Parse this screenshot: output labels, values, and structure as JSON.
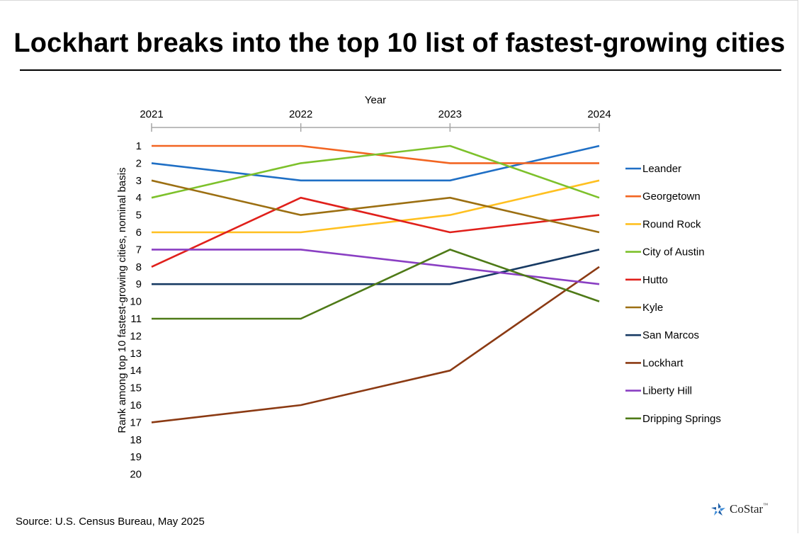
{
  "title": "Lockhart breaks into the top 10 list of fastest-growing cities",
  "source": "Source: U.S. Census Bureau, May 2025",
  "logo": {
    "text": "CoStar",
    "tm": "™"
  },
  "chart_data": {
    "type": "line",
    "title": "Lockhart breaks into the top 10 list of fastest-growing cities",
    "xlabel": "Year",
    "ylabel": "Rank among top 10 fastest-growing cities, nominal basis",
    "x": [
      "2021",
      "2022",
      "2023",
      "2024"
    ],
    "x_axis_position": "top",
    "y_inverted": true,
    "ylim": [
      1,
      20
    ],
    "y_ticks": [
      "1",
      "2",
      "3",
      "4",
      "5",
      "6",
      "7",
      "8",
      "9",
      "10",
      "11",
      "12",
      "13",
      "14",
      "15",
      "16",
      "17",
      "18",
      "19",
      "20"
    ],
    "grid": false,
    "legend_position": "right",
    "series": [
      {
        "name": "Leander",
        "color": "#1f6fc5",
        "values": [
          2,
          3,
          3,
          1
        ]
      },
      {
        "name": "Georgetown",
        "color": "#f26522",
        "values": [
          1,
          1,
          2,
          2
        ]
      },
      {
        "name": "Round Rock",
        "color": "#ffc020",
        "values": [
          6,
          6,
          5,
          3
        ]
      },
      {
        "name": "City of Austin",
        "color": "#7dc12b",
        "values": [
          4,
          2,
          1,
          4
        ]
      },
      {
        "name": "Hutto",
        "color": "#e0201b",
        "values": [
          8,
          4,
          6,
          5
        ]
      },
      {
        "name": "Kyle",
        "color": "#9c6f12",
        "values": [
          3,
          5,
          4,
          6
        ]
      },
      {
        "name": "San Marcos",
        "color": "#173a63",
        "values": [
          9,
          9,
          9,
          7
        ]
      },
      {
        "name": "Lockhart",
        "color": "#8b3a13",
        "values": [
          17,
          16,
          14,
          8
        ]
      },
      {
        "name": "Liberty Hill",
        "color": "#8a3fc3",
        "values": [
          7,
          7,
          8,
          9
        ]
      },
      {
        "name": "Dripping Springs",
        "color": "#4e7a17",
        "values": [
          11,
          11,
          7,
          10
        ]
      }
    ]
  }
}
